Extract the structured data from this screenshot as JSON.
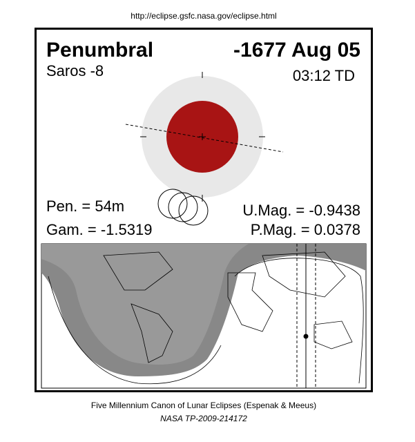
{
  "header": {
    "url": "http://eclipse.gsfc.nasa.gov/eclipse.html"
  },
  "eclipse": {
    "type": "Penumbral",
    "date": "-1677 Aug 05",
    "saros": "Saros  -8",
    "time": "03:12 TD",
    "pen": "Pen. =  54m",
    "gamma": "Gam. = -1.5319",
    "umag": "U.Mag. = -0.9438",
    "pmag": "P.Mag. = 0.0378"
  },
  "footer": {
    "line1": "Five Millennium Canon of Lunar Eclipses (Espenak & Meeus)",
    "line2": "NASA TP-2009-214172"
  }
}
